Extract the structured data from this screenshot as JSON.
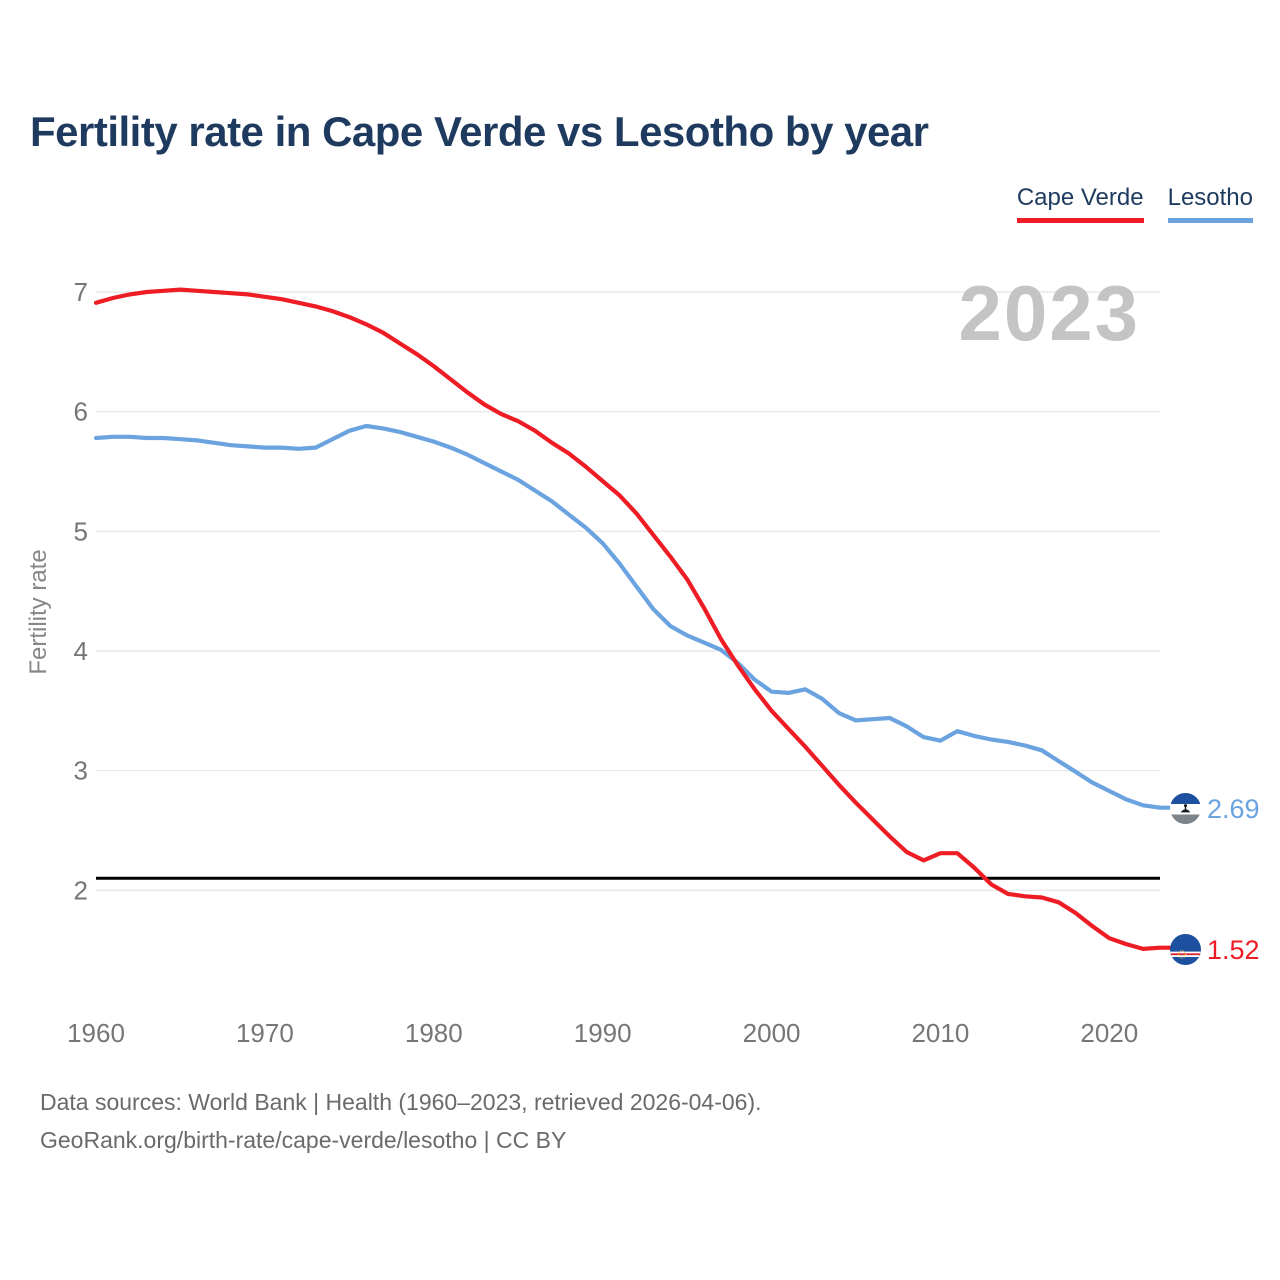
{
  "title": "Fertility rate in Cape Verde vs Lesotho by year",
  "watermark": "2023",
  "legend": [
    {
      "label": "Cape Verde",
      "color": "#ee1c24"
    },
    {
      "label": "Lesotho",
      "color": "#6aa3df"
    }
  ],
  "footer": {
    "line1": "Data sources: World Bank | Health (1960–2023, retrieved 2026-04-06).",
    "line2": "GeoRank.org/birth-rate/cape-verde/lesotho | CC BY"
  },
  "colors": {
    "title_text": "#1e3a5f",
    "axis_text": "#767676",
    "axis_label_text": "#878787",
    "gridline": "#e9e9e9",
    "reference_line": "#000000",
    "watermark_text": "#c4c4c4",
    "footer_text": "#6a6a6a"
  },
  "chart_data": {
    "type": "line",
    "title": "Fertility rate in Cape Verde vs Lesotho by year",
    "xlabel": "",
    "ylabel": "Fertility rate",
    "grid": "horizontal",
    "legend_position": "top-right",
    "x_ticks": [
      1960,
      1970,
      1980,
      1990,
      2000,
      2010,
      2020
    ],
    "y_ticks": [
      2,
      3,
      4,
      5,
      6,
      7
    ],
    "xlim": [
      1960,
      2023
    ],
    "ylim": [
      1.3,
      7.1
    ],
    "reference_line_y": 2.1,
    "x": [
      1960,
      1961,
      1962,
      1963,
      1964,
      1965,
      1966,
      1967,
      1968,
      1969,
      1970,
      1971,
      1972,
      1973,
      1974,
      1975,
      1976,
      1977,
      1978,
      1979,
      1980,
      1981,
      1982,
      1983,
      1984,
      1985,
      1986,
      1987,
      1988,
      1989,
      1990,
      1991,
      1992,
      1993,
      1994,
      1995,
      1996,
      1997,
      1998,
      1999,
      2000,
      2001,
      2002,
      2003,
      2004,
      2005,
      2006,
      2007,
      2008,
      2009,
      2010,
      2011,
      2012,
      2013,
      2014,
      2015,
      2016,
      2017,
      2018,
      2019,
      2020,
      2021,
      2022,
      2023
    ],
    "series": [
      {
        "name": "Cape Verde",
        "color": "#ee1c24",
        "end_label": "1.52",
        "end_value": 1.52,
        "values": [
          6.91,
          6.95,
          6.98,
          7.0,
          7.01,
          7.02,
          7.01,
          7.0,
          6.99,
          6.98,
          6.96,
          6.94,
          6.91,
          6.88,
          6.84,
          6.79,
          6.73,
          6.66,
          6.57,
          6.48,
          6.38,
          6.27,
          6.16,
          6.06,
          5.98,
          5.92,
          5.84,
          5.74,
          5.65,
          5.54,
          5.42,
          5.3,
          5.15,
          4.97,
          4.79,
          4.6,
          4.36,
          4.1,
          3.88,
          3.68,
          3.5,
          3.35,
          3.2,
          3.04,
          2.88,
          2.73,
          2.59,
          2.45,
          2.32,
          2.25,
          2.31,
          2.31,
          2.19,
          2.05,
          1.97,
          1.95,
          1.94,
          1.9,
          1.81,
          1.7,
          1.6,
          1.55,
          1.51,
          1.52
        ]
      },
      {
        "name": "Lesotho",
        "color": "#6aa3df",
        "end_label": "2.69",
        "end_value": 2.69,
        "values": [
          5.78,
          5.79,
          5.79,
          5.78,
          5.78,
          5.77,
          5.76,
          5.74,
          5.72,
          5.71,
          5.7,
          5.7,
          5.69,
          5.7,
          5.77,
          5.84,
          5.88,
          5.86,
          5.83,
          5.79,
          5.75,
          5.7,
          5.64,
          5.57,
          5.5,
          5.43,
          5.34,
          5.25,
          5.14,
          5.03,
          4.9,
          4.73,
          4.54,
          4.35,
          4.21,
          4.13,
          4.07,
          4.01,
          3.9,
          3.76,
          3.66,
          3.65,
          3.68,
          3.6,
          3.48,
          3.42,
          3.43,
          3.44,
          3.37,
          3.28,
          3.25,
          3.33,
          3.29,
          3.26,
          3.24,
          3.21,
          3.17,
          3.08,
          2.99,
          2.9,
          2.83,
          2.76,
          2.71,
          2.69
        ]
      }
    ]
  }
}
